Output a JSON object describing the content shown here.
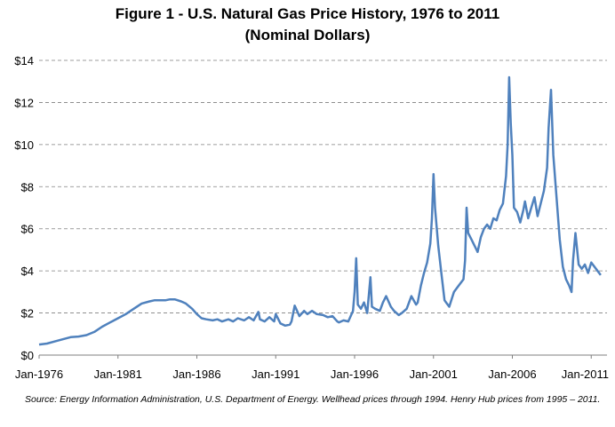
{
  "chart_data": {
    "type": "line",
    "title": "Figure 1 - U.S. Natural Gas Price History, 1976 to 2011",
    "subtitle": "(Nominal Dollars)",
    "xlabel": "",
    "ylabel": "",
    "x_ticks": [
      "Jan-1976",
      "Jan-1981",
      "Jan-1986",
      "Jan-1991",
      "Jan-1996",
      "Jan-2001",
      "Jan-2006",
      "Jan-2011"
    ],
    "y_ticks": [
      "$0",
      "$2",
      "$4",
      "$6",
      "$8",
      "$10",
      "$12",
      "$14"
    ],
    "xlim": [
      1976.0,
      2012.0
    ],
    "ylim": [
      0,
      14
    ],
    "grid": "horizontal dashed",
    "line_color": "#4f81bd",
    "series": [
      {
        "x": [
          1976.0,
          1976.5,
          1977.0,
          1977.5,
          1978.0,
          1978.5,
          1979.0,
          1979.5,
          1980.0,
          1980.5,
          1981.0,
          1981.5,
          1982.0,
          1982.5,
          1983.0,
          1983.3,
          1983.6,
          1984.0,
          1984.3,
          1984.6,
          1985.0,
          1985.3,
          1985.7,
          1986.0,
          1986.3,
          1986.6,
          1987.0,
          1987.3,
          1987.6,
          1988.0,
          1988.3,
          1988.6,
          1989.0,
          1989.3,
          1989.6,
          1989.9,
          1990.0,
          1990.3,
          1990.6,
          1990.9,
          1991.0,
          1991.3,
          1991.6,
          1991.9,
          1992.0,
          1992.2,
          1992.5,
          1992.8,
          1993.0,
          1993.3,
          1993.6,
          1994.0,
          1994.3,
          1994.6,
          1994.9,
          1995.0,
          1995.3,
          1995.6,
          1995.9,
          1996.0,
          1996.1,
          1996.2,
          1996.4,
          1996.6,
          1996.8,
          1997.0,
          1997.1,
          1997.3,
          1997.6,
          1997.8,
          1998.0,
          1998.3,
          1998.5,
          1998.8,
          1999.0,
          1999.3,
          1999.6,
          1999.9,
          2000.0,
          2000.2,
          2000.4,
          2000.6,
          2000.8,
          2000.9,
          2001.0,
          2001.1,
          2001.3,
          2001.5,
          2001.7,
          2001.9,
          2002.0,
          2002.3,
          2002.6,
          2002.9,
          2003.0,
          2003.1,
          2003.2,
          2003.4,
          2003.6,
          2003.8,
          2004.0,
          2004.2,
          2004.4,
          2004.6,
          2004.8,
          2005.0,
          2005.2,
          2005.4,
          2005.6,
          2005.7,
          2005.8,
          2005.9,
          2006.0,
          2006.1,
          2006.3,
          2006.5,
          2006.7,
          2006.8,
          2007.0,
          2007.2,
          2007.4,
          2007.6,
          2007.8,
          2008.0,
          2008.2,
          2008.3,
          2008.45,
          2008.6,
          2008.8,
          2009.0,
          2009.2,
          2009.4,
          2009.6,
          2009.75,
          2009.85,
          2010.0,
          2010.2,
          2010.4,
          2010.6,
          2010.8,
          2011.0,
          2011.3,
          2011.6
        ],
        "y": [
          0.5,
          0.55,
          0.65,
          0.75,
          0.85,
          0.88,
          0.95,
          1.1,
          1.35,
          1.55,
          1.75,
          1.95,
          2.2,
          2.45,
          2.55,
          2.6,
          2.6,
          2.6,
          2.65,
          2.65,
          2.55,
          2.45,
          2.2,
          1.95,
          1.75,
          1.7,
          1.65,
          1.7,
          1.6,
          1.7,
          1.6,
          1.75,
          1.65,
          1.8,
          1.65,
          2.05,
          1.7,
          1.6,
          1.8,
          1.6,
          1.95,
          1.5,
          1.4,
          1.45,
          1.6,
          2.35,
          1.85,
          2.1,
          1.95,
          2.1,
          1.95,
          1.9,
          1.8,
          1.85,
          1.6,
          1.55,
          1.65,
          1.6,
          2.1,
          3.0,
          4.6,
          2.4,
          2.2,
          2.5,
          2.0,
          3.7,
          2.3,
          2.2,
          2.1,
          2.5,
          2.8,
          2.3,
          2.1,
          1.9,
          2.0,
          2.2,
          2.8,
          2.4,
          2.5,
          3.3,
          3.9,
          4.4,
          5.3,
          6.5,
          8.6,
          7.0,
          5.2,
          3.9,
          2.6,
          2.4,
          2.3,
          3.0,
          3.3,
          3.6,
          4.5,
          7.0,
          5.8,
          5.5,
          5.2,
          4.9,
          5.6,
          6.0,
          6.2,
          6.0,
          6.5,
          6.4,
          6.9,
          7.2,
          8.5,
          10.0,
          13.2,
          11.0,
          9.5,
          7.0,
          6.8,
          6.3,
          6.9,
          7.3,
          6.5,
          7.0,
          7.5,
          6.6,
          7.2,
          7.8,
          8.9,
          10.8,
          12.6,
          9.5,
          7.5,
          5.5,
          4.2,
          3.6,
          3.3,
          3.0,
          4.5,
          5.8,
          4.3,
          4.1,
          4.3,
          3.9,
          4.4,
          4.1,
          3.8
        ]
      }
    ]
  },
  "source_note": "Source: Energy Information Administration, U.S. Department of Energy. Wellhead prices through 1994. Henry Hub prices from 1995 – 2011."
}
